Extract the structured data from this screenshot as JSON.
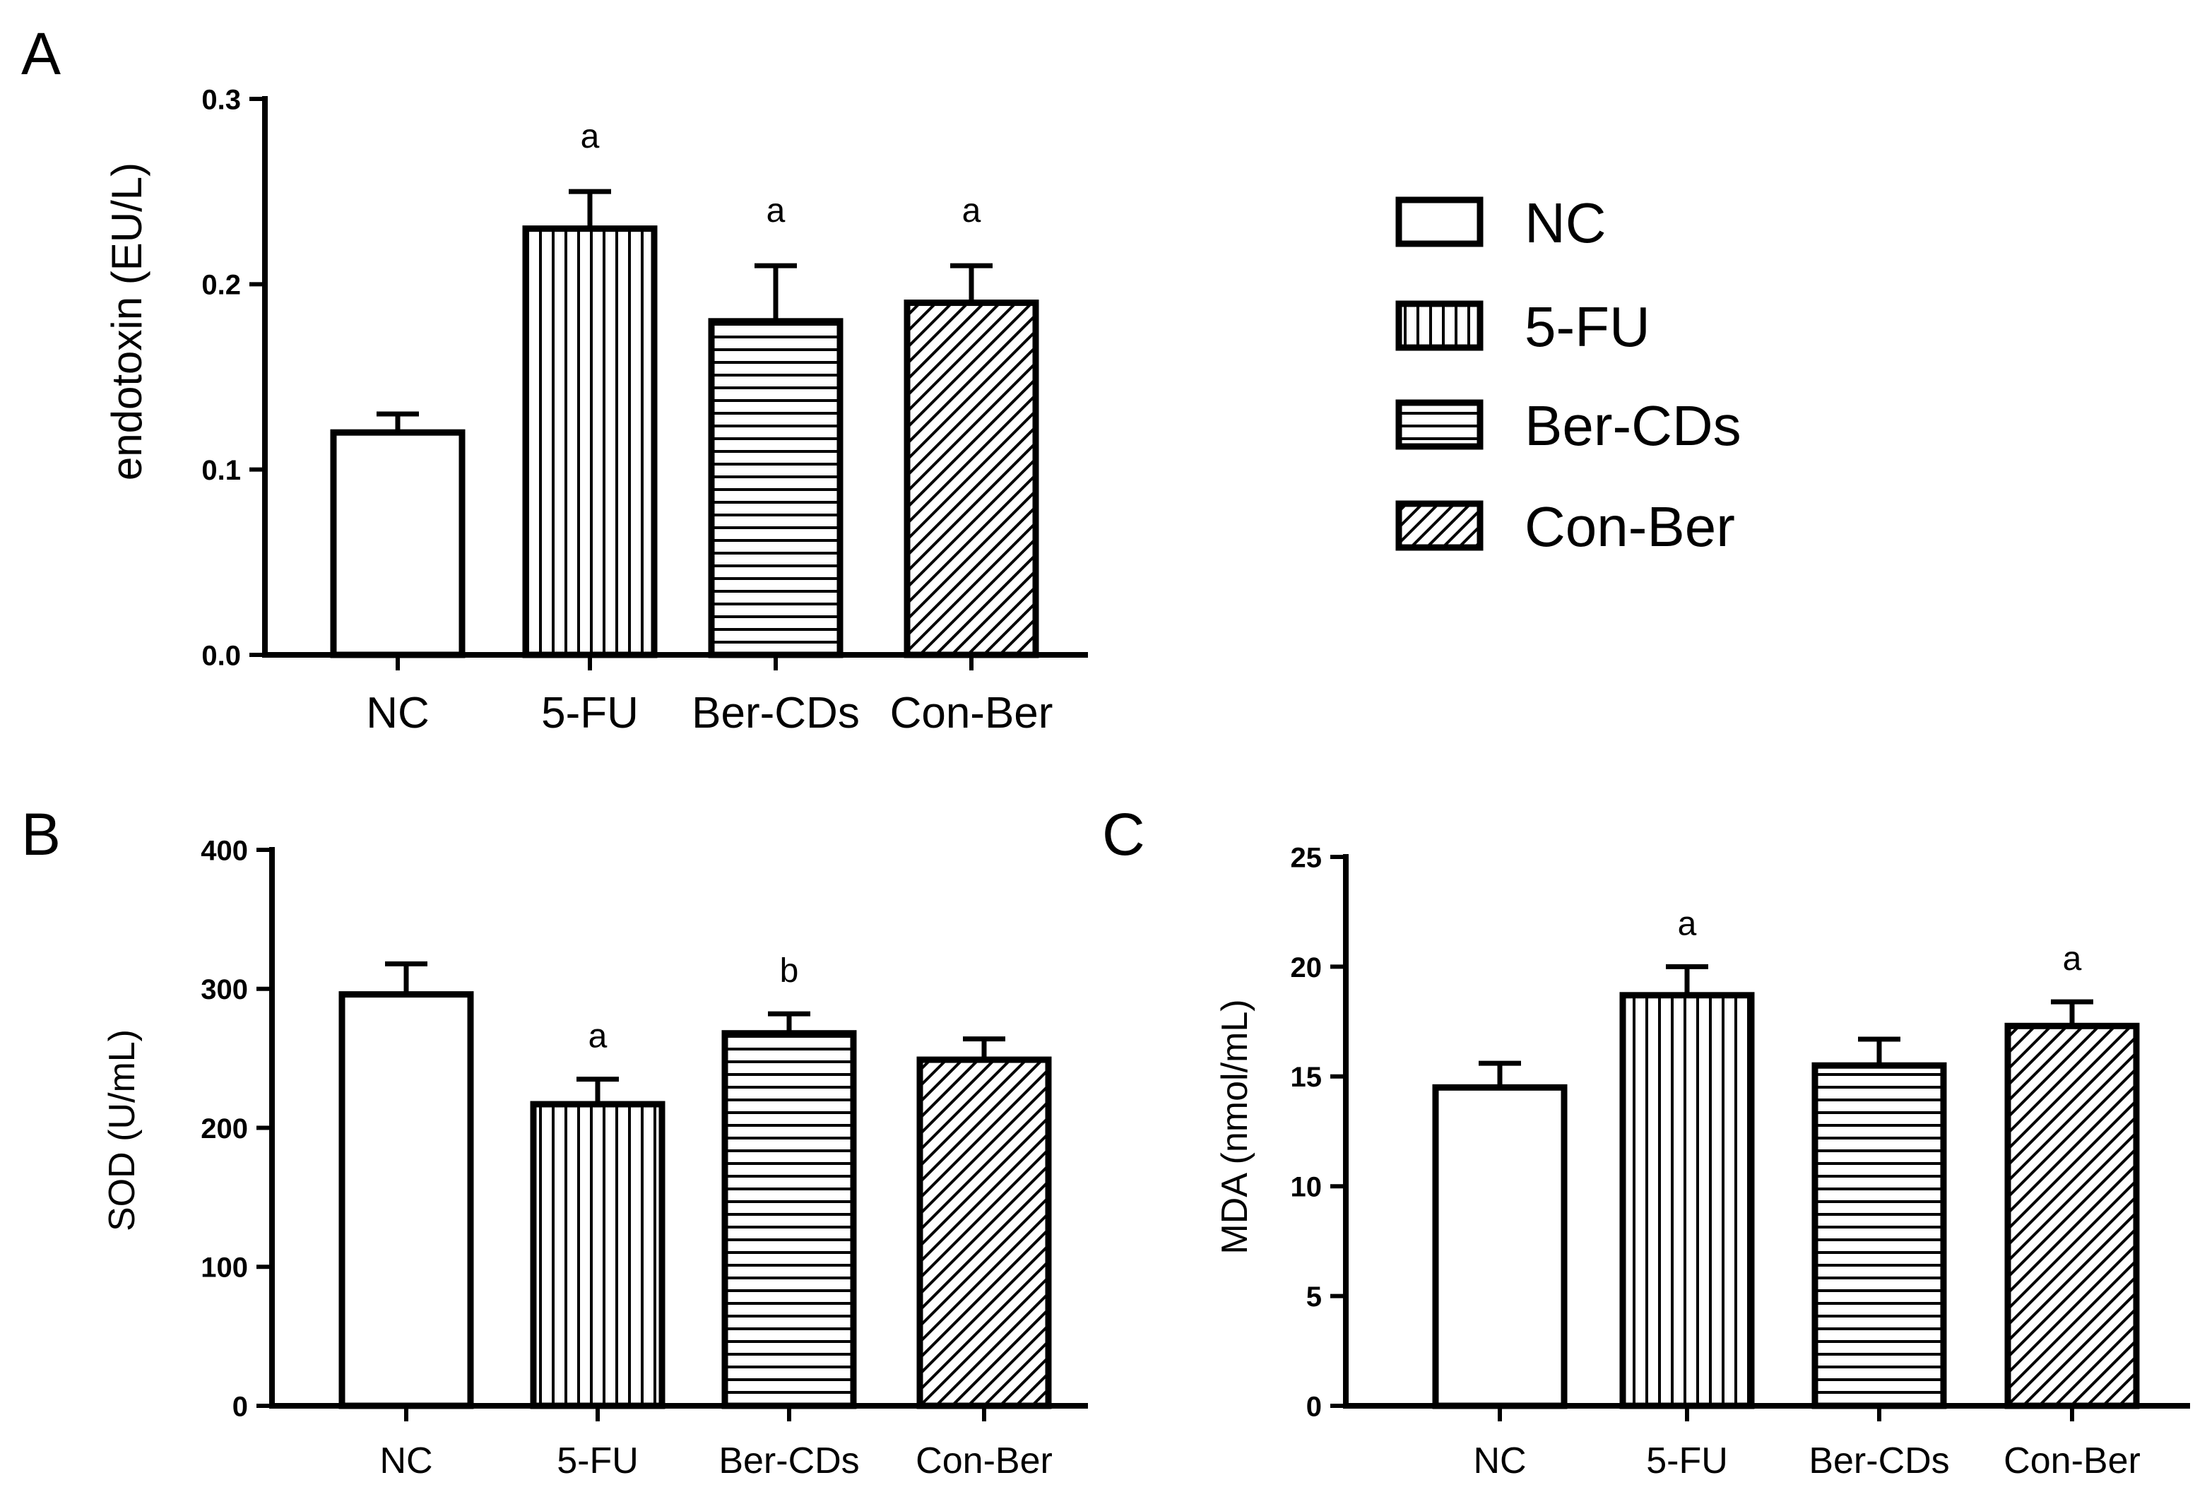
{
  "legend": {
    "entries": [
      {
        "label": "NC",
        "pattern": "none"
      },
      {
        "label": "5-FU",
        "pattern": "vertical"
      },
      {
        "label": "Ber-CDs",
        "pattern": "horizontal"
      },
      {
        "label": "Con-Ber",
        "pattern": "diagonal"
      }
    ]
  },
  "chart_data": [
    {
      "panel": "A",
      "type": "bar",
      "title": "",
      "xlabel": "",
      "ylabel": "endotoxin (EU/L)",
      "categories": [
        "NC",
        "5-FU",
        "Ber-CDs",
        "Con-Ber"
      ],
      "values": [
        0.12,
        0.23,
        0.18,
        0.19
      ],
      "errors": [
        0.01,
        0.02,
        0.03,
        0.02
      ],
      "significance": [
        "",
        "a",
        "a",
        "a"
      ],
      "patterns": [
        "none",
        "vertical",
        "horizontal",
        "diagonal"
      ],
      "ylim": [
        0,
        0.3
      ],
      "yticks": [
        0.0,
        0.1,
        0.2,
        0.3
      ],
      "ytick_labels": [
        "0.0",
        "0.1",
        "0.2",
        "0.3"
      ]
    },
    {
      "panel": "B",
      "type": "bar",
      "title": "",
      "xlabel": "",
      "ylabel": "SOD (U/mL)",
      "categories": [
        "NC",
        "5-FU",
        "Ber-CDs",
        "Con-Ber"
      ],
      "values": [
        296,
        217,
        268,
        249
      ],
      "errors": [
        22,
        18,
        14,
        15
      ],
      "significance": [
        "",
        "a",
        "b",
        ""
      ],
      "patterns": [
        "none",
        "vertical",
        "horizontal",
        "diagonal"
      ],
      "ylim": [
        0,
        400
      ],
      "yticks": [
        0,
        100,
        200,
        300,
        400
      ],
      "ytick_labels": [
        "0",
        "100",
        "200",
        "300",
        "400"
      ]
    },
    {
      "panel": "C",
      "type": "bar",
      "title": "",
      "xlabel": "",
      "ylabel": "MDA (nmol/mL)",
      "categories": [
        "NC",
        "5-FU",
        "Ber-CDs",
        "Con-Ber"
      ],
      "values": [
        14.5,
        18.7,
        15.5,
        17.3
      ],
      "errors": [
        1.1,
        1.3,
        1.2,
        1.1
      ],
      "significance": [
        "",
        "a",
        "",
        "a"
      ],
      "patterns": [
        "none",
        "vertical",
        "horizontal",
        "diagonal"
      ],
      "ylim": [
        0,
        25
      ],
      "yticks": [
        0,
        5,
        10,
        15,
        20,
        25
      ],
      "ytick_labels": [
        "0",
        "5",
        "10",
        "15",
        "20",
        "25"
      ]
    }
  ]
}
